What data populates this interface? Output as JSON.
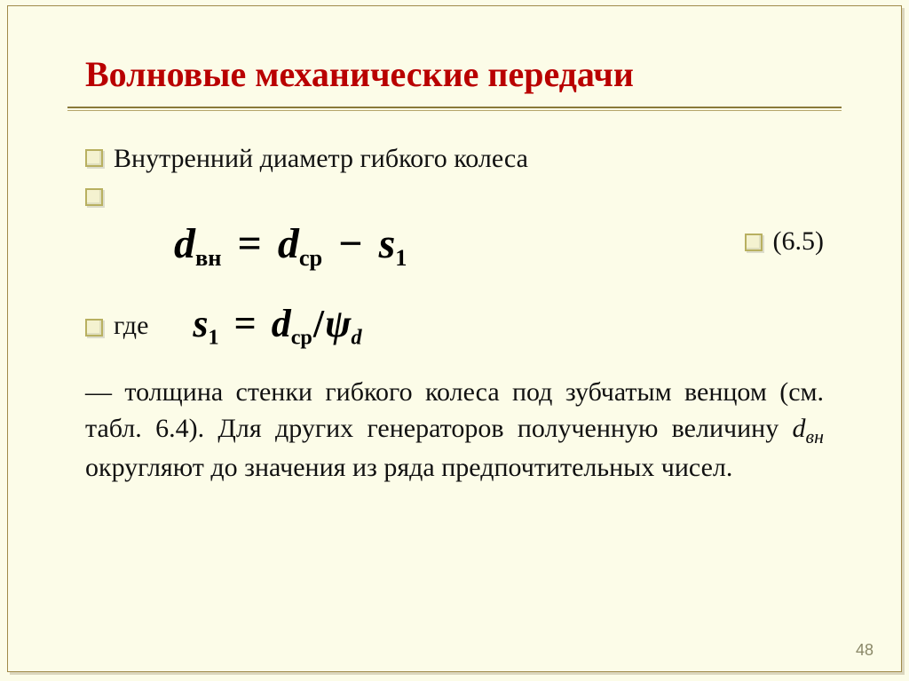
{
  "slide": {
    "background_color": "#fcfce8",
    "frame_color": "#a08a4a",
    "title": {
      "text": "Волновые механические передачи",
      "color": "#b90000",
      "fontsize_pt": 40,
      "rule_colors": [
        "#8a7a3a",
        "#b5a66a"
      ]
    },
    "bullets": {
      "box_border_color": "#b8b060",
      "box_fill_color": "#f4f2d0"
    },
    "line1": "Внутренний диаметр гибкого колеса",
    "equation_main": {
      "lhs_var": "d",
      "lhs_sub": "вн",
      "rhs1_var": "d",
      "rhs1_sub": "ср",
      "op": "−",
      "rhs2_var": "s",
      "rhs2_sub": "1",
      "number": "(6.5)",
      "fontsize_pt": 48
    },
    "where_label": "где",
    "equation_sub": {
      "lhs_var": "s",
      "lhs_sub": "1",
      "rhs1_var": "d",
      "rhs1_sub": "ср",
      "op": "/",
      "rhs2_var": "ψ",
      "rhs2_sub": "d",
      "fontsize_pt": 44
    },
    "desc": {
      "prefix": "— толщина стенки гибкого колеса под зубчатым венцом (см. табл. 6.4). Для других генераторов полученную величину ",
      "var": "d",
      "var_sub": "вн",
      "suffix": " округляют до значения из ряда предпочтительных чисел.",
      "fontsize_pt": 30
    },
    "page_number": "48"
  }
}
